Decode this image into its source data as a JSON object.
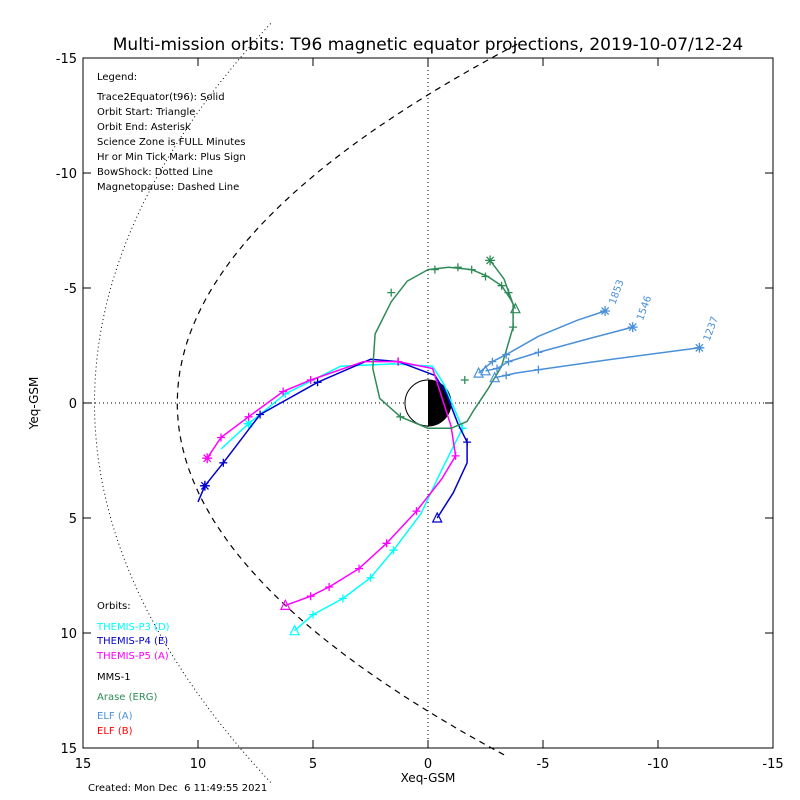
{
  "title": "Multi-mission orbits: T96 magnetic equator projections, 2019-10-07/12-24",
  "footer": "Created: Mon Dec  6 11:49:55 2021",
  "legend": {
    "heading": "Legend:",
    "lines": [
      "Trace2Equator(t96): Solid",
      "Orbit Start: Triangle",
      "Orbit End: Asterisk",
      "Science Zone is FULL Minutes",
      "Hr or Min Tick Mark: Plus Sign",
      "BowShock: Dotted Line",
      "Magnetopause: Dashed Line"
    ]
  },
  "orbits_legend": {
    "heading": "Orbits:",
    "items": [
      {
        "label": "THEMIS-P3 (D)",
        "color": "#00ffff"
      },
      {
        "label": "THEMIS-P4 (E)",
        "color": "#0000cc"
      },
      {
        "label": "THEMIS-P5 (A)",
        "color": "#ff00ff"
      },
      {
        "label": "MMS-1",
        "color": "#000000"
      },
      {
        "label": "Arase (ERG)",
        "color": "#2e8b57"
      },
      {
        "label": "ELF (A)",
        "color": "#4a90d9"
      },
      {
        "label": "ELF (B)",
        "color": "#ff0000"
      }
    ]
  },
  "chart_data": {
    "type": "scatter",
    "title": "Multi-mission orbits: T96 magnetic equator projections, 2019-10-07/12-24",
    "xlabel": "Xeq-GSM",
    "ylabel": "Yeq-GSM",
    "xlim": [
      15,
      -15
    ],
    "ylim": [
      -15,
      15
    ],
    "x_ticks": [
      15,
      10,
      5,
      0,
      -5,
      -10,
      -15
    ],
    "y_ticks": [
      -15,
      -10,
      -5,
      0,
      5,
      10,
      15
    ],
    "x_tick_labels": [
      "15",
      "10",
      "5",
      "0",
      "-5",
      "-10",
      "-15"
    ],
    "y_tick_labels": [
      "-15",
      "-10",
      "-5",
      "0",
      "5",
      "10",
      "15"
    ],
    "grid": "dotted zero lines",
    "bow_shock": {
      "style": "dotted",
      "nose_x": 14.5,
      "flank_y_at_x8": 15.2
    },
    "magnetopause": {
      "style": "dashed",
      "nose_x": 10.9,
      "flank_y_at_x0": 13.4
    },
    "series": [
      {
        "name": "THEMIS-P3 (D)",
        "color": "#00ffff",
        "points": [
          [
            5.8,
            9.9
          ],
          [
            5.0,
            9.2
          ],
          [
            3.7,
            8.5
          ],
          [
            2.5,
            7.6
          ],
          [
            1.5,
            6.4
          ],
          [
            0.3,
            4.8
          ],
          [
            -0.6,
            2.9
          ],
          [
            -1.5,
            1.1
          ],
          [
            -0.7,
            -0.8
          ],
          [
            -0.2,
            -1.6
          ],
          [
            1.5,
            -1.7
          ],
          [
            3.8,
            -1.6
          ],
          [
            6.2,
            -0.4
          ],
          [
            7.8,
            0.9
          ],
          [
            9.0,
            2.0
          ]
        ],
        "ticks": [
          [
            5.0,
            9.2
          ],
          [
            3.7,
            8.5
          ],
          [
            2.5,
            7.6
          ],
          [
            1.5,
            6.4
          ],
          [
            -1.5,
            1.1
          ],
          [
            6.2,
            -0.4
          ],
          [
            7.8,
            0.9
          ]
        ],
        "start": [
          5.8,
          9.9
        ],
        "end": [
          7.8,
          0.9
        ]
      },
      {
        "name": "THEMIS-P4 (E)",
        "color": "#0000cc",
        "points": [
          [
            -0.4,
            5.0
          ],
          [
            -1.1,
            3.9
          ],
          [
            -1.7,
            2.6
          ],
          [
            -1.7,
            1.7
          ],
          [
            -1.3,
            0.9
          ],
          [
            -0.8,
            -0.4
          ],
          [
            -0.3,
            -1.2
          ],
          [
            1.3,
            -1.8
          ],
          [
            2.5,
            -1.9
          ],
          [
            4.8,
            -0.9
          ],
          [
            7.3,
            0.5
          ],
          [
            8.9,
            2.6
          ],
          [
            9.7,
            3.6
          ],
          [
            10.0,
            4.3
          ]
        ],
        "ticks": [
          [
            -1.7,
            1.7
          ],
          [
            1.3,
            -1.8
          ],
          [
            4.8,
            -0.9
          ],
          [
            7.3,
            0.5
          ],
          [
            8.9,
            2.6
          ],
          [
            9.7,
            3.6
          ]
        ],
        "start": [
          -0.4,
          5.0
        ],
        "end": [
          9.7,
          3.6
        ]
      },
      {
        "name": "THEMIS-P5 (A)",
        "color": "#ff00ff",
        "points": [
          [
            6.2,
            8.8
          ],
          [
            5.1,
            8.4
          ],
          [
            4.3,
            8.0
          ],
          [
            3.0,
            7.2
          ],
          [
            1.8,
            6.1
          ],
          [
            0.5,
            4.7
          ],
          [
            -0.6,
            3.3
          ],
          [
            -1.2,
            2.3
          ],
          [
            -1.0,
            1.0
          ],
          [
            -0.2,
            -1.5
          ],
          [
            1.3,
            -1.8
          ],
          [
            2.8,
            -1.8
          ],
          [
            5.1,
            -1.0
          ],
          [
            6.3,
            -0.5
          ],
          [
            7.8,
            0.6
          ],
          [
            9.0,
            1.5
          ],
          [
            9.6,
            2.4
          ]
        ],
        "ticks": [
          [
            5.1,
            8.4
          ],
          [
            4.3,
            8.0
          ],
          [
            3.0,
            7.2
          ],
          [
            1.8,
            6.1
          ],
          [
            0.5,
            4.7
          ],
          [
            -1.2,
            2.3
          ],
          [
            1.3,
            -1.8
          ],
          [
            5.1,
            -1.0
          ],
          [
            6.3,
            -0.5
          ],
          [
            7.8,
            0.6
          ],
          [
            9.0,
            1.5
          ]
        ],
        "start": [
          6.2,
          8.8
        ],
        "end": [
          9.6,
          2.4
        ]
      },
      {
        "name": "Arase (ERG)",
        "color": "#2e8b57",
        "points": [
          [
            -2.7,
            -6.2
          ],
          [
            -3.0,
            -5.8
          ],
          [
            -3.3,
            -5.4
          ],
          [
            -3.7,
            -4.3
          ],
          [
            -3.7,
            -3.3
          ],
          [
            -3.2,
            -1.6
          ],
          [
            -2.6,
            -0.6
          ],
          [
            -2.0,
            0.3
          ],
          [
            -1.7,
            0.8
          ],
          [
            -1.0,
            1.1
          ],
          [
            0.0,
            1.1
          ],
          [
            1.2,
            0.6
          ],
          [
            2.1,
            -0.2
          ],
          [
            2.4,
            -1.5
          ],
          [
            2.3,
            -3.0
          ],
          [
            1.6,
            -4.4
          ],
          [
            0.9,
            -5.3
          ],
          [
            0.0,
            -5.8
          ],
          [
            -0.9,
            -5.9
          ],
          [
            -1.9,
            -5.8
          ],
          [
            -2.6,
            -5.5
          ],
          [
            -3.2,
            -5.1
          ],
          [
            -3.6,
            -4.5
          ],
          [
            -3.8,
            -4.1
          ]
        ],
        "ticks": [
          [
            -3.7,
            -3.3
          ],
          [
            1.2,
            0.6
          ],
          [
            1.6,
            -4.8
          ],
          [
            -0.3,
            -5.8
          ],
          [
            -1.3,
            -5.9
          ],
          [
            -1.9,
            -5.8
          ],
          [
            -2.5,
            -5.5
          ],
          [
            -3.2,
            -5.1
          ],
          [
            -3.5,
            -4.8
          ],
          [
            -1.6,
            -1.0
          ]
        ],
        "start": [
          -3.8,
          -4.1
        ],
        "end": [
          -2.7,
          -6.2
        ]
      },
      {
        "name": "ELF (A) 1853",
        "color": "#4a90d9",
        "label": "1853",
        "points": [
          [
            -2.2,
            -1.3
          ],
          [
            -2.8,
            -1.8
          ],
          [
            -3.4,
            -2.1
          ],
          [
            -4.8,
            -2.9
          ],
          [
            -6.5,
            -3.6
          ],
          [
            -7.7,
            -4.0
          ]
        ],
        "ticks": [
          [
            -2.8,
            -1.8
          ],
          [
            -3.4,
            -2.1
          ]
        ],
        "start": [
          -2.2,
          -1.3
        ],
        "end": [
          -7.7,
          -4.0
        ]
      },
      {
        "name": "ELF (A) 1546",
        "color": "#4a90d9",
        "label": "1546",
        "points": [
          [
            -2.5,
            -1.4
          ],
          [
            -3.0,
            -1.5
          ],
          [
            -3.5,
            -1.8
          ],
          [
            -4.8,
            -2.2
          ],
          [
            -7.0,
            -2.8
          ],
          [
            -8.9,
            -3.3
          ]
        ],
        "ticks": [
          [
            -3.0,
            -1.5
          ],
          [
            -3.5,
            -1.8
          ],
          [
            -4.8,
            -2.2
          ]
        ],
        "start": [
          -2.5,
          -1.4
        ],
        "end": [
          -8.9,
          -3.3
        ]
      },
      {
        "name": "ELF (A) 1237",
        "color": "#4a90d9",
        "label": "1237",
        "points": [
          [
            -2.9,
            -1.1
          ],
          [
            -3.4,
            -1.2
          ],
          [
            -3.8,
            -1.3
          ],
          [
            -4.8,
            -1.45
          ],
          [
            -8.0,
            -1.9
          ],
          [
            -11.8,
            -2.4
          ]
        ],
        "ticks": [
          [
            -3.4,
            -1.2
          ],
          [
            -4.8,
            -1.45
          ]
        ],
        "start": [
          -2.9,
          -1.1
        ],
        "end": [
          -11.8,
          -2.4
        ]
      }
    ]
  }
}
